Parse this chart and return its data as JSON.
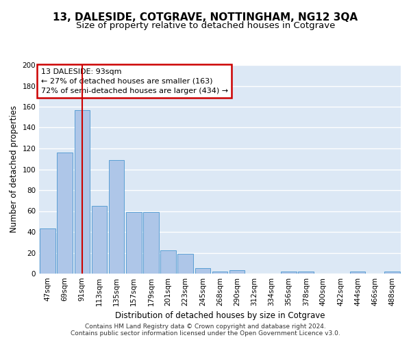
{
  "title": "13, DALESIDE, COTGRAVE, NOTTINGHAM, NG12 3QA",
  "subtitle": "Size of property relative to detached houses in Cotgrave",
  "xlabel": "Distribution of detached houses by size in Cotgrave",
  "ylabel": "Number of detached properties",
  "footer_line1": "Contains HM Land Registry data © Crown copyright and database right 2024.",
  "footer_line2": "Contains public sector information licensed under the Open Government Licence v3.0.",
  "categories": [
    "47sqm",
    "69sqm",
    "91sqm",
    "113sqm",
    "135sqm",
    "157sqm",
    "179sqm",
    "201sqm",
    "223sqm",
    "245sqm",
    "268sqm",
    "290sqm",
    "312sqm",
    "334sqm",
    "356sqm",
    "378sqm",
    "400sqm",
    "422sqm",
    "444sqm",
    "466sqm",
    "488sqm"
  ],
  "values": [
    43,
    116,
    157,
    65,
    109,
    59,
    59,
    22,
    19,
    5,
    2,
    3,
    0,
    0,
    2,
    2,
    0,
    0,
    2,
    0,
    2
  ],
  "bar_color": "#aec6e8",
  "bar_edge_color": "#5a9fd4",
  "vline_idx": 2,
  "vline_color": "#cc0000",
  "annotation_text": "13 DALESIDE: 93sqm\n← 27% of detached houses are smaller (163)\n72% of semi-detached houses are larger (434) →",
  "ylim": [
    0,
    200
  ],
  "yticks": [
    0,
    20,
    40,
    60,
    80,
    100,
    120,
    140,
    160,
    180,
    200
  ],
  "bg_color": "#dce8f5",
  "grid_color": "#ffffff",
  "title_fontsize": 11,
  "subtitle_fontsize": 9.5,
  "axis_label_fontsize": 8.5,
  "tick_fontsize": 7.5,
  "annotation_fontsize": 8,
  "footer_fontsize": 6.5
}
